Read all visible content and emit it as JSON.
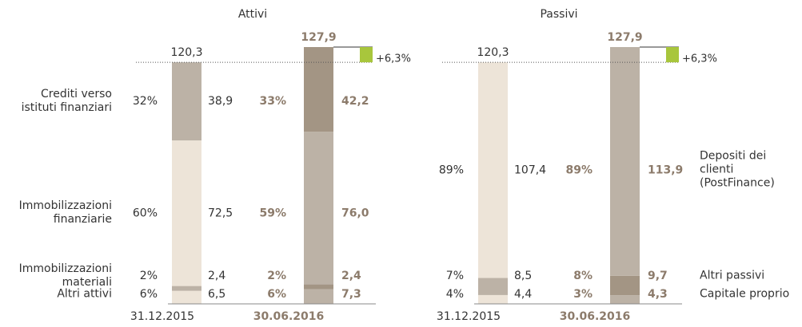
{
  "chart_data": [
    {
      "type": "bar",
      "stacked": true,
      "title": "Attivi",
      "categories": [
        "31.12.2015",
        "30.06.2016"
      ],
      "totals": [
        120.3,
        127.9
      ],
      "total_labels": [
        "120,3",
        "127,9"
      ],
      "change": 6.3,
      "change_label": "+6,3%",
      "change_color": "#a8c63c",
      "series": [
        {
          "name": "Altri attivi",
          "colors": [
            "#ede4d8",
            "#bcb2a6"
          ],
          "values": [
            6.5,
            7.3
          ],
          "value_labels": [
            "6,5",
            "7,3"
          ],
          "shares": [
            6,
            6
          ],
          "share_labels": [
            "6%",
            "6%"
          ]
        },
        {
          "name": "Immobilizzazioni materiali",
          "colors": [
            "#bcb2a6",
            "#a39584"
          ],
          "values": [
            2.4,
            2.4
          ],
          "value_labels": [
            "2,4",
            "2,4"
          ],
          "shares": [
            2,
            2
          ],
          "share_labels": [
            "2%",
            "2%"
          ]
        },
        {
          "name": "Immobilizzazioni finanziarie",
          "colors": [
            "#ede4d8",
            "#bcb2a6"
          ],
          "values": [
            72.5,
            76.0
          ],
          "value_labels": [
            "72,5",
            "76,0"
          ],
          "shares": [
            60,
            59
          ],
          "share_labels": [
            "60%",
            "59%"
          ]
        },
        {
          "name": "Crediti verso istituti finanziari",
          "colors": [
            "#bcb2a6",
            "#a39584"
          ],
          "values": [
            38.9,
            42.2
          ],
          "value_labels": [
            "38,9",
            "42,2"
          ],
          "shares": [
            32,
            33
          ],
          "share_labels": [
            "32%",
            "33%"
          ]
        }
      ]
    },
    {
      "type": "bar",
      "stacked": true,
      "title": "Passivi",
      "categories": [
        "31.12.2015",
        "30.06.2016"
      ],
      "totals": [
        120.3,
        127.9
      ],
      "total_labels": [
        "120,3",
        "127,9"
      ],
      "change": 6.3,
      "change_label": "+6,3%",
      "change_color": "#a8c63c",
      "series": [
        {
          "name": "Capitale proprio",
          "colors": [
            "#ede4d8",
            "#bcb2a6"
          ],
          "values": [
            4.4,
            4.3
          ],
          "value_labels": [
            "4,4",
            "4,3"
          ],
          "shares": [
            4,
            3
          ],
          "share_labels": [
            "4%",
            "3%"
          ]
        },
        {
          "name": "Altri passivi",
          "colors": [
            "#bcb2a6",
            "#a39584"
          ],
          "values": [
            8.5,
            9.7
          ],
          "value_labels": [
            "8,5",
            "9,7"
          ],
          "shares": [
            7,
            8
          ],
          "share_labels": [
            "7%",
            "8%"
          ]
        },
        {
          "name": "Depositi dei clienti (PostFinance)",
          "colors": [
            "#ede4d8",
            "#bcb2a6"
          ],
          "values": [
            107.4,
            113.9
          ],
          "value_labels": [
            "107,4",
            "113,9"
          ],
          "shares": [
            89,
            89
          ],
          "share_labels": [
            "89%",
            "89%"
          ]
        }
      ]
    }
  ]
}
